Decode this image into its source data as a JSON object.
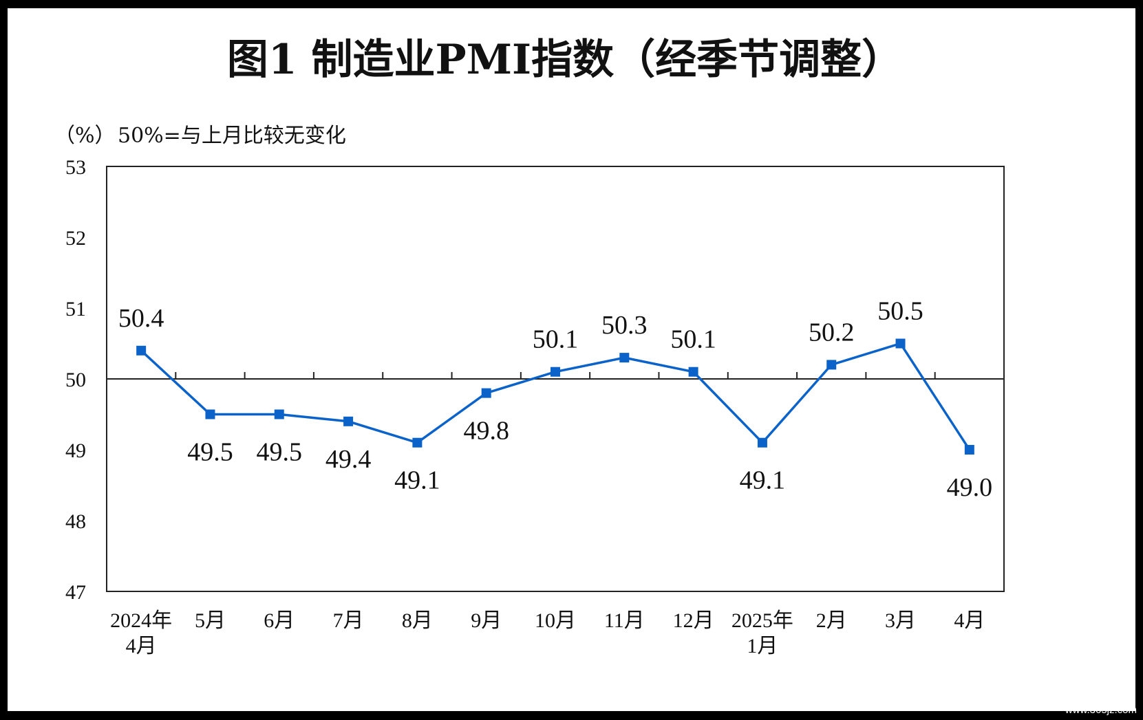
{
  "chart_data": {
    "type": "line",
    "title": "图1  制造业PMI指数（经季节调整）",
    "unit_label": "（%）",
    "note": "50%=与上月比较无变化",
    "categories": [
      [
        "2024年",
        "4月"
      ],
      [
        "5月"
      ],
      [
        "6月"
      ],
      [
        "7月"
      ],
      [
        "8月"
      ],
      [
        "9月"
      ],
      [
        "10月"
      ],
      [
        "11月"
      ],
      [
        "12月"
      ],
      [
        "2025年",
        "1月"
      ],
      [
        "2月"
      ],
      [
        "3月"
      ],
      [
        "4月"
      ]
    ],
    "series": [
      {
        "values": [
          50.4,
          49.5,
          49.5,
          49.4,
          49.1,
          49.8,
          50.1,
          50.3,
          50.1,
          49.1,
          50.2,
          50.5,
          49.0
        ],
        "labels": [
          "50.4",
          "49.5",
          "49.5",
          "49.4",
          "49.1",
          "49.8",
          "50.1",
          "50.3",
          "50.1",
          "49.1",
          "50.2",
          "50.5",
          "49.0"
        ],
        "label_positions": [
          "above",
          "below",
          "below",
          "below",
          "below",
          "below",
          "above",
          "above",
          "above",
          "below",
          "above",
          "above",
          "below"
        ],
        "color": "#0b63c9",
        "marker": "square"
      }
    ],
    "ylim": [
      47,
      53
    ],
    "yticks": [
      "47",
      "48",
      "49",
      "50",
      "51",
      "52",
      "53"
    ],
    "reference_line": 50,
    "grid": false
  },
  "watermark": "www.365jz.com"
}
